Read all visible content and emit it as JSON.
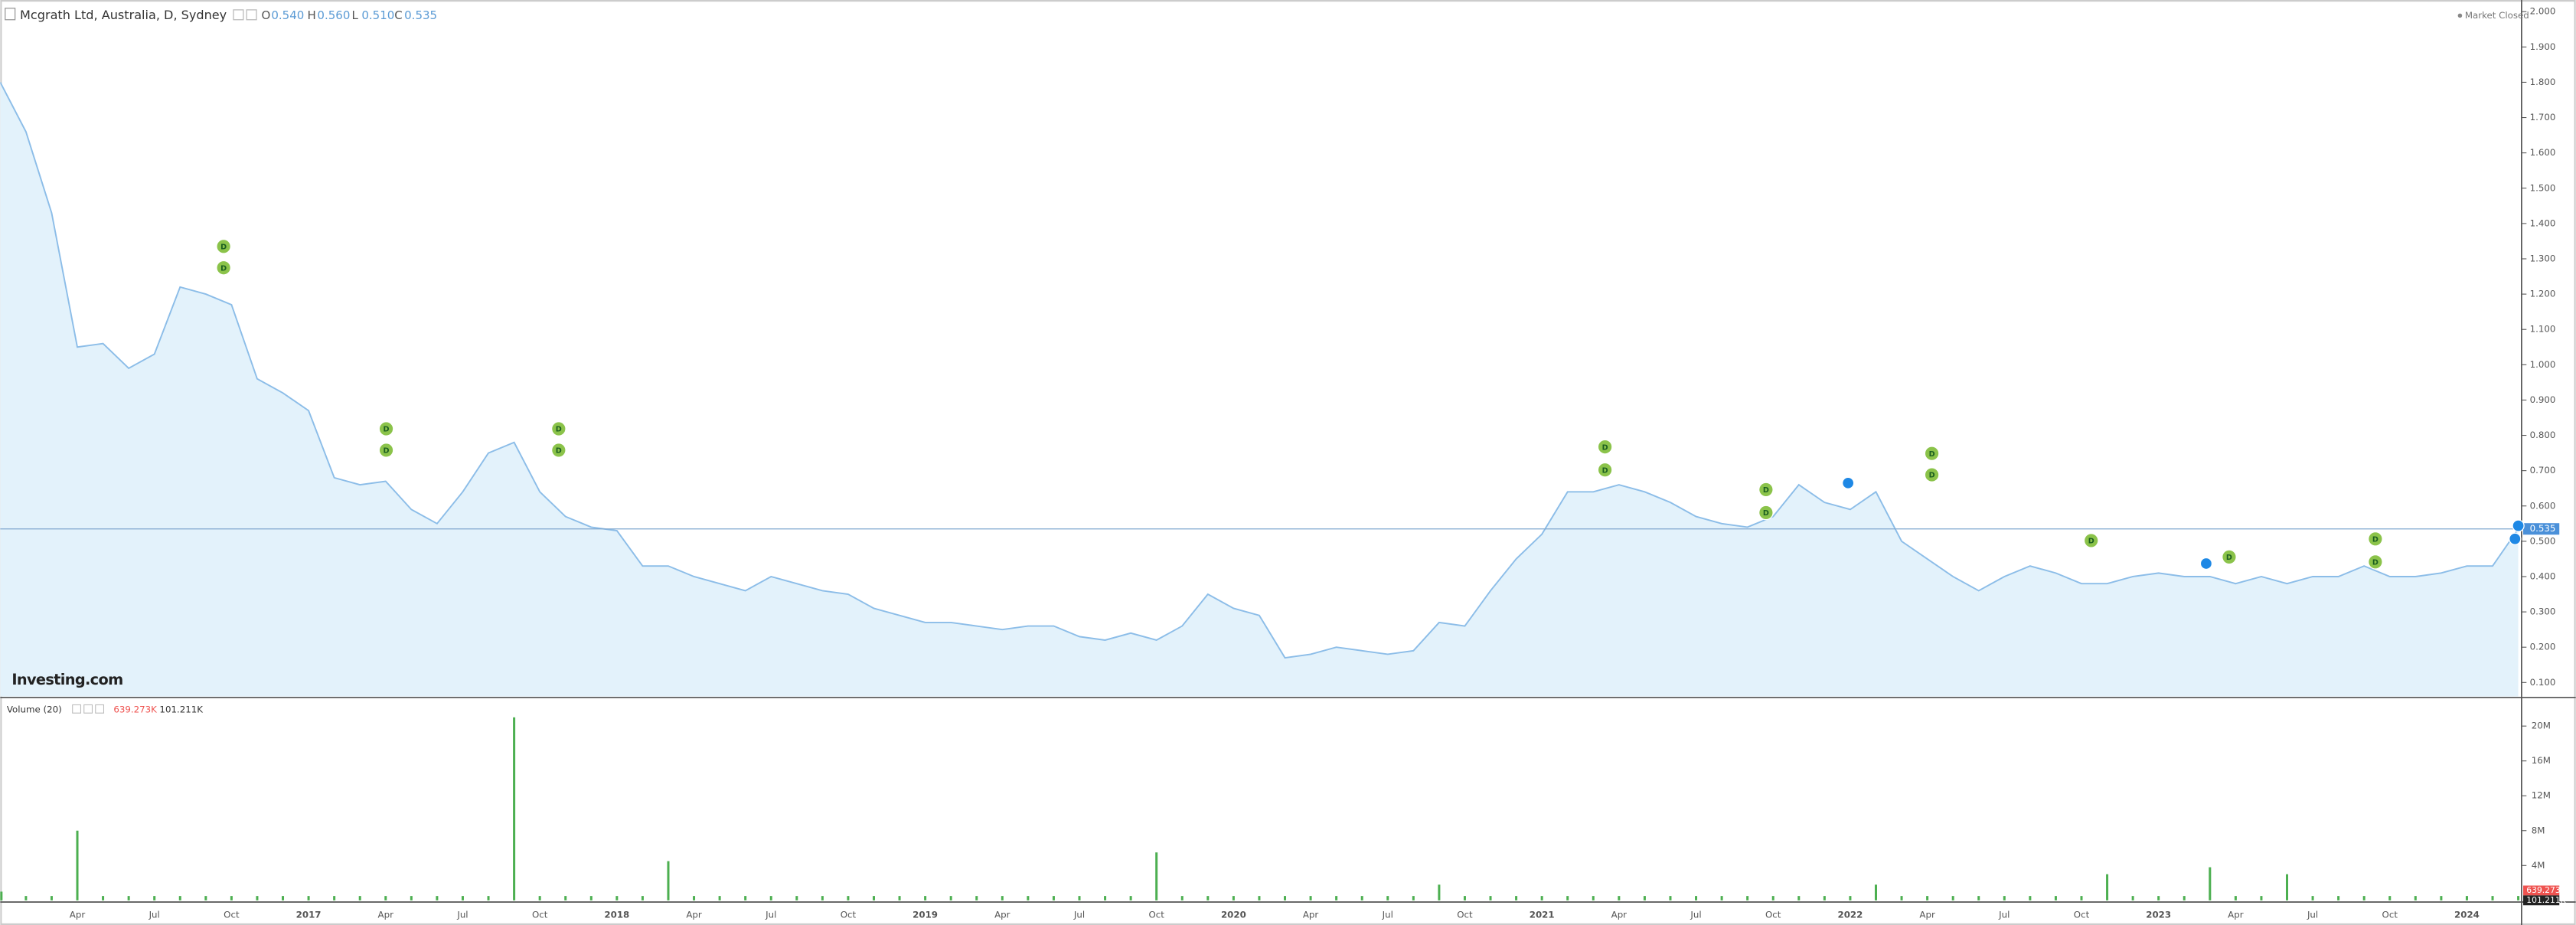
{
  "chart_data": [
    {
      "type": "line",
      "title": "Mcgrath Ltd, Australia, D, Sydney",
      "ohlc": {
        "o_label": "O",
        "o": "0.540",
        "h_label": "H",
        "h": "0.560",
        "l_label": "L",
        "l": "0.510",
        "c_label": "C",
        "c": "0.535"
      },
      "status": "Market Closed",
      "logo": "Investing.com",
      "last_price_label": "0.535",
      "dividend_label": "D",
      "color": "#8cbde8",
      "fill": "#e3f2fb",
      "categories": [
        null,
        null,
        null,
        "Apr",
        null,
        null,
        "Jul",
        null,
        null,
        "Oct",
        null,
        null,
        "2017",
        null,
        null,
        "Apr",
        null,
        null,
        "Jul",
        null,
        null,
        "Oct",
        null,
        null,
        "2018",
        null,
        null,
        "Apr",
        null,
        null,
        "Jul",
        null,
        null,
        "Oct",
        null,
        null,
        "2019",
        null,
        null,
        "Apr",
        null,
        null,
        "Jul",
        null,
        null,
        "Oct",
        null,
        null,
        "2020",
        null,
        null,
        "Apr",
        null,
        null,
        "Jul",
        null,
        null,
        "Oct",
        null,
        null,
        "2021",
        null,
        null,
        "Apr",
        null,
        null,
        "Jul",
        null,
        null,
        "Oct",
        null,
        null,
        "2022",
        null,
        null,
        "Apr",
        null,
        null,
        "Jul",
        null,
        null,
        "Oct",
        null,
        null,
        "2023",
        null,
        null,
        "Apr",
        null,
        null,
        "Jul",
        null,
        null,
        "Oct",
        null,
        null,
        "2024",
        null,
        null
      ],
      "values": [
        1.8,
        1.66,
        1.43,
        1.05,
        1.06,
        0.99,
        1.03,
        1.22,
        1.2,
        1.17,
        0.96,
        0.92,
        0.87,
        0.68,
        0.66,
        0.67,
        0.59,
        0.55,
        0.64,
        0.75,
        0.78,
        0.64,
        0.57,
        0.54,
        0.53,
        0.43,
        0.43,
        0.4,
        0.38,
        0.36,
        0.4,
        0.38,
        0.36,
        0.35,
        0.31,
        0.29,
        0.27,
        0.27,
        0.26,
        0.25,
        0.26,
        0.26,
        0.23,
        0.22,
        0.24,
        0.22,
        0.26,
        0.35,
        0.31,
        0.29,
        0.17,
        0.18,
        0.2,
        0.19,
        0.18,
        0.19,
        0.27,
        0.26,
        0.36,
        0.45,
        0.52,
        0.64,
        0.64,
        0.66,
        0.64,
        0.61,
        0.57,
        0.55,
        0.54,
        0.57,
        0.66,
        0.61,
        0.59,
        0.64,
        0.5,
        0.45,
        0.4,
        0.36,
        0.4,
        0.43,
        0.41,
        0.38,
        0.38,
        0.4,
        0.41,
        0.4,
        0.4,
        0.38,
        0.4,
        0.38,
        0.4,
        0.4,
        0.43,
        0.4,
        0.4,
        0.41,
        0.43,
        0.43,
        0.535
      ],
      "ylim": [
        0.06,
        2.033
      ],
      "yticks": [
        {
          "value": 0.1,
          "label": "0.100"
        },
        {
          "value": 0.2,
          "label": "0.200"
        },
        {
          "value": 0.3,
          "label": "0.300"
        },
        {
          "value": 0.4,
          "label": "0.400"
        },
        {
          "value": 0.5,
          "label": "0.500"
        },
        {
          "value": 0.6,
          "label": "0.600"
        },
        {
          "value": 0.7,
          "label": "0.700"
        },
        {
          "value": 0.8,
          "label": "0.800"
        },
        {
          "value": 0.9,
          "label": "0.900"
        },
        {
          "value": 1.0,
          "label": "1.000"
        },
        {
          "value": 1.1,
          "label": "1.100"
        },
        {
          "value": 1.2,
          "label": "1.200"
        },
        {
          "value": 1.3,
          "label": "1.300"
        },
        {
          "value": 1.4,
          "label": "1.400"
        },
        {
          "value": 1.5,
          "label": "1.500"
        },
        {
          "value": 1.6,
          "label": "1.600"
        },
        {
          "value": 1.7,
          "label": "1.700"
        },
        {
          "value": 1.8,
          "label": "1.800"
        },
        {
          "value": 1.9,
          "label": "1.900"
        },
        {
          "value": 2.0,
          "label": "2.000"
        }
      ]
    },
    {
      "type": "bar",
      "title": "Volume (20)",
      "legend_values": [
        "639.273K",
        "101.211K"
      ],
      "color": "#4caf50",
      "values": [
        1000000,
        500000,
        500000,
        8000000,
        500000,
        500000,
        500000,
        500000,
        500000,
        500000,
        500000,
        500000,
        500000,
        500000,
        500000,
        500000,
        500000,
        500000,
        500000,
        500000,
        21000000,
        500000,
        500000,
        500000,
        500000,
        500000,
        4500000,
        500000,
        500000,
        500000,
        500000,
        500000,
        500000,
        500000,
        500000,
        500000,
        500000,
        500000,
        500000,
        500000,
        500000,
        500000,
        500000,
        500000,
        500000,
        5500000,
        500000,
        500000,
        500000,
        500000,
        500000,
        500000,
        500000,
        500000,
        500000,
        500000,
        1800000,
        500000,
        500000,
        500000,
        500000,
        500000,
        500000,
        500000,
        500000,
        500000,
        500000,
        500000,
        500000,
        500000,
        500000,
        500000,
        500000,
        1800000,
        500000,
        500000,
        500000,
        500000,
        500000,
        500000,
        500000,
        500000,
        3000000,
        500000,
        500000,
        500000,
        3800000,
        500000,
        500000,
        3000000,
        500000,
        500000,
        500000,
        500000,
        500000,
        500000,
        500000,
        500000,
        500000
      ],
      "ylim": [
        0,
        23000000
      ],
      "yticks": [
        {
          "value": 4000000,
          "label": "4M"
        },
        {
          "value": 8000000,
          "label": "8M"
        },
        {
          "value": 12000000,
          "label": "12M"
        },
        {
          "value": 16000000,
          "label": "16M"
        },
        {
          "value": 20000000,
          "label": "20M"
        }
      ]
    }
  ]
}
